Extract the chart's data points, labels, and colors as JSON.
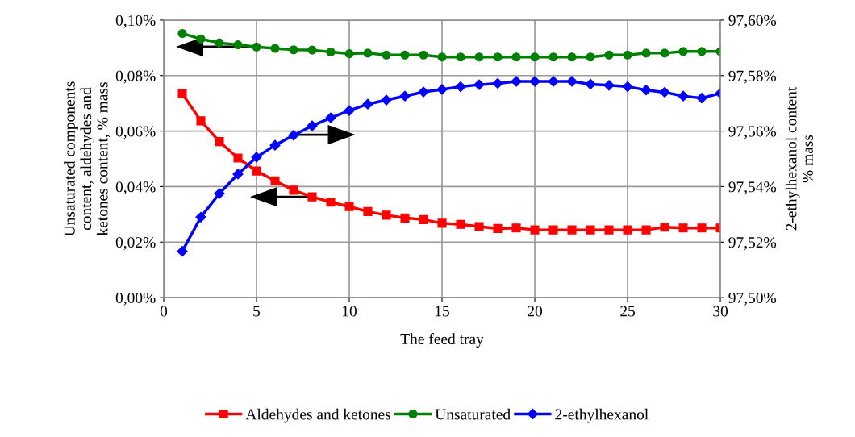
{
  "chart_data": {
    "type": "line",
    "xlabel": "The feed tray",
    "ylabel": "Unsaturated components\ncontent, aldehydes and\nketones content, % mass",
    "y2label": "2-ethylhexanol content\n% mass",
    "x": [
      1,
      2,
      3,
      4,
      5,
      6,
      7,
      8,
      9,
      10,
      11,
      12,
      13,
      14,
      15,
      16,
      17,
      18,
      19,
      20,
      21,
      22,
      23,
      24,
      25,
      26,
      27,
      28,
      29,
      30
    ],
    "xlim": [
      0,
      30
    ],
    "xticks": [
      0,
      5,
      10,
      15,
      20,
      25,
      30
    ],
    "ylim": [
      0,
      0.1
    ],
    "yticks": [
      {
        "value": 0,
        "label": "0,00%"
      },
      {
        "value": 0.02,
        "label": "0,02%"
      },
      {
        "value": 0.04,
        "label": "0,04%"
      },
      {
        "value": 0.06,
        "label": "0,06%"
      },
      {
        "value": 0.08,
        "label": "0,08%"
      },
      {
        "value": 0.1,
        "label": "0,10%"
      }
    ],
    "y2lim": [
      97.5,
      97.6
    ],
    "y2ticks": [
      {
        "value": 97.5,
        "label": "97,50%"
      },
      {
        "value": 97.52,
        "label": "97,52%"
      },
      {
        "value": 97.54,
        "label": "97,54%"
      },
      {
        "value": 97.56,
        "label": "97,56%"
      },
      {
        "value": 97.58,
        "label": "97,58%"
      },
      {
        "value": 97.6,
        "label": "97,60%"
      }
    ],
    "grid": true,
    "legend": "bottom",
    "series": [
      {
        "name": "Aldehydes and ketones",
        "color": "#ff0000",
        "marker": "square",
        "values": [
          0.0735,
          0.0637,
          0.0562,
          0.0503,
          0.0456,
          0.0421,
          0.0387,
          0.0363,
          0.0344,
          0.0328,
          0.031,
          0.0297,
          0.0287,
          0.0281,
          0.0268,
          0.0264,
          0.0256,
          0.0249,
          0.0251,
          0.0244,
          0.0244,
          0.0244,
          0.0244,
          0.0244,
          0.0244,
          0.0244,
          0.0254,
          0.0251,
          0.0251,
          0.0251
        ]
      },
      {
        "name": "Unsaturated",
        "color": "#008000",
        "marker": "circle",
        "values": [
          0.0952,
          0.0932,
          0.0918,
          0.0911,
          0.0903,
          0.0898,
          0.0893,
          0.0892,
          0.0885,
          0.0879,
          0.0881,
          0.0874,
          0.0874,
          0.0874,
          0.0867,
          0.0867,
          0.0867,
          0.0867,
          0.0867,
          0.0867,
          0.0867,
          0.0867,
          0.0867,
          0.0874,
          0.0874,
          0.0881,
          0.0881,
          0.0887,
          0.0887,
          0.0887
        ]
      },
      {
        "name": "2-ethylhexanol",
        "color": "#0000ff",
        "marker": "diamond",
        "axis": "y2",
        "values": [
          97.5167,
          97.529,
          97.5375,
          97.5445,
          97.5506,
          97.5549,
          97.5585,
          97.5619,
          97.5648,
          97.5674,
          97.5697,
          97.5712,
          97.5726,
          97.5741,
          97.575,
          97.576,
          97.5767,
          97.5772,
          97.5779,
          97.5779,
          97.5779,
          97.5779,
          97.5769,
          97.5765,
          97.576,
          97.5748,
          97.574,
          97.5726,
          97.5719,
          97.5736
        ]
      }
    ]
  }
}
